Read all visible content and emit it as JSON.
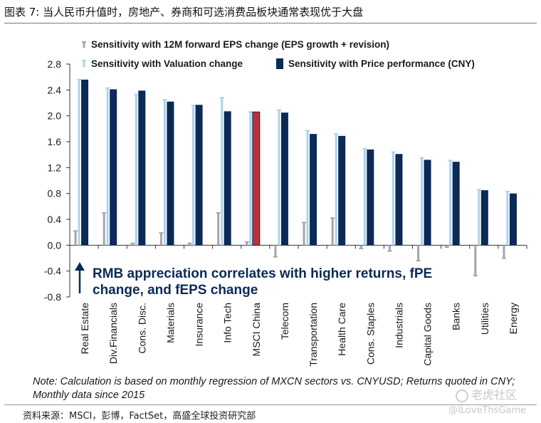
{
  "figure_title": "图表 7: 当人民币升值时，房地产、券商和可选消费品板块通常表现优于大盘",
  "note": "Note: Calculation is based on monthly regression of MXCN sectors vs. CNYUSD; Returns quoted in CNY; Monthly data since 2015",
  "source": "资料来源：MSCI，彭博，FactSet，高盛全球投资研究部",
  "watermark": {
    "logo_text": "老虎社区",
    "user_text": "@ILoveThsGame"
  },
  "colors": {
    "eps": "#a6a6a6",
    "valuation": "#a9d3ee",
    "price": "#0b2a55",
    "price_highlight": "#b8323a",
    "annotation": "#0b2a55"
  },
  "chart_data": {
    "type": "bar",
    "title": "",
    "xlabel": "",
    "ylabel": "",
    "ylim": [
      -0.8,
      2.8
    ],
    "yticks": [
      -0.8,
      -0.4,
      0.0,
      0.4,
      0.8,
      1.2,
      1.6,
      2.0,
      2.4,
      2.8
    ],
    "ytick_labels": [
      "-0.8",
      "-0.4",
      "0.0",
      "0.4",
      "0.8",
      "1.2",
      "1.6",
      "2.0",
      "2.4",
      "2.8"
    ],
    "grid": false,
    "legend_position": "top",
    "categories": [
      "Real Estate",
      "Div.Financials",
      "Cons. Disc.",
      "Materials",
      "Insurance",
      "Info Tech",
      "MSCI China",
      "Telecom",
      "Transportation",
      "Health Care",
      "Cons. Staples",
      "Industrials",
      "Capital Goods",
      "Banks",
      "Utilities",
      "Energy"
    ],
    "highlight_category": "MSCI China",
    "series": [
      {
        "name": "Sensitivity with 12M forward EPS change (EPS growth + revision)",
        "legend_label": "Sensitivity with 12M forward EPS change (EPS growth + revision)",
        "values": [
          0.22,
          0.5,
          0.03,
          0.19,
          0.03,
          0.5,
          0.05,
          -0.18,
          0.35,
          0.42,
          -0.05,
          -0.09,
          -0.24,
          -0.03,
          -0.47,
          -0.2
        ]
      },
      {
        "name": "Sensitivity with Valuation change",
        "legend_label": "Sensitivity with Valuation change",
        "values": [
          2.56,
          2.43,
          2.33,
          2.25,
          2.16,
          2.28,
          2.06,
          2.09,
          1.77,
          1.72,
          1.49,
          1.44,
          1.35,
          1.31,
          0.86,
          0.83
        ]
      },
      {
        "name": "Sensitivity with Price performance (CNY)",
        "legend_label": "Sensitivity with Price performance (CNY)",
        "values": [
          2.56,
          2.41,
          2.39,
          2.22,
          2.17,
          2.07,
          2.06,
          2.05,
          1.72,
          1.69,
          1.48,
          1.41,
          1.32,
          1.29,
          0.85,
          0.8
        ]
      }
    ],
    "annotation": {
      "line1": "RMB appreciation correlates with higher returns, fPE",
      "line2": "change, and fEPS change"
    }
  }
}
